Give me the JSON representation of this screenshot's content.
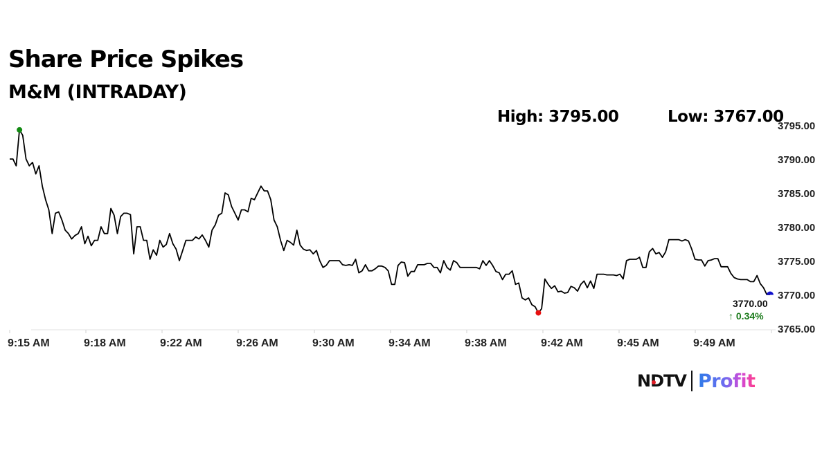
{
  "header": {
    "title": "Share Price Spikes",
    "subtitle": "M&M (INTRADAY)",
    "high_label": "High: 3795.00",
    "low_label": "Low: 3767.00"
  },
  "last_price": "3770.00",
  "change": "↑ 0.34%",
  "logo": {
    "brand": "NDTV",
    "product": "Profit"
  },
  "colors": {
    "line": "#000000",
    "high_marker": "#128a12",
    "low_marker": "#e81010",
    "last_marker": "#1010cc",
    "change_positive": "#1a7a1a"
  },
  "chart_data": {
    "type": "line",
    "title": "Share Price Spikes",
    "subtitle": "M&M (INTRADAY)",
    "xlabel": "",
    "ylabel": "",
    "x_tick_labels": [
      "9:15 AM",
      "9:18 AM",
      "9:22 AM",
      "9:26 AM",
      "9:30 AM",
      "9:34 AM",
      "9:38 AM",
      "9:42 AM",
      "9:45 AM",
      "9:49 AM"
    ],
    "y_tick_labels": [
      "3795.00",
      "3790.00",
      "3785.00",
      "3780.00",
      "3775.00",
      "3770.00",
      "3765.00"
    ],
    "ylim": [
      3765,
      3795
    ],
    "y_axis_position": "right",
    "grid": false,
    "high": 3795.0,
    "low": 3767.0,
    "last": 3770.0,
    "change_pct": 0.34,
    "series": [
      {
        "name": "M&M",
        "values": [
          3790,
          3790,
          3789,
          3794.3,
          3793.5,
          3790,
          3789,
          3789.5,
          3787.8,
          3789,
          3786,
          3784,
          3782.5,
          3779,
          3782,
          3782.2,
          3781,
          3779.5,
          3779,
          3778.2,
          3778.7,
          3779,
          3780,
          3777.5,
          3778.6,
          3777.2,
          3778,
          3778,
          3780,
          3779,
          3779,
          3782.7,
          3781.7,
          3779,
          3781.5,
          3782,
          3782,
          3781.8,
          3776,
          3780,
          3780,
          3778,
          3778,
          3775.2,
          3776.6,
          3775.8,
          3778,
          3777,
          3777.4,
          3779,
          3777.5,
          3776.7,
          3775,
          3776.5,
          3778,
          3778,
          3778,
          3778.5,
          3778.2,
          3778.8,
          3778,
          3777,
          3779.5,
          3780.3,
          3781.7,
          3782,
          3785,
          3784.7,
          3783,
          3782,
          3781,
          3782.5,
          3782.5,
          3782.2,
          3784.2,
          3784,
          3785,
          3786,
          3785.3,
          3785.3,
          3784,
          3781,
          3780,
          3778,
          3776.5,
          3778,
          3777.7,
          3777.3,
          3779.5,
          3777.3,
          3776.7,
          3776.5,
          3776.6,
          3776,
          3776.5,
          3775,
          3774,
          3774.3,
          3775,
          3775,
          3775,
          3775,
          3774.4,
          3774.3,
          3774.4,
          3774.3,
          3775.2,
          3773.2,
          3773.5,
          3774.4,
          3773.5,
          3773.5,
          3773.8,
          3774.2,
          3774.2,
          3774,
          3773.5,
          3771.5,
          3771.5,
          3774.3,
          3774.8,
          3774.7,
          3772.7,
          3773.4,
          3773.4,
          3774.4,
          3774.4,
          3774.4,
          3774.6,
          3774.6,
          3774,
          3774,
          3773.2,
          3775,
          3774,
          3773.6,
          3775,
          3774.7,
          3774,
          3774,
          3774,
          3774,
          3774,
          3774,
          3773.8,
          3775,
          3774.3,
          3775,
          3774.3,
          3773.4,
          3773.2,
          3772.2,
          3773,
          3773,
          3773.5,
          3771.5,
          3771.7,
          3769.5,
          3769.2,
          3769.5,
          3768.5,
          3768.2,
          3767.3,
          3767.9,
          3772.3,
          3771.5,
          3770.9,
          3771.3,
          3770.4,
          3770.5,
          3770.2,
          3770.3,
          3771.2,
          3771,
          3770.5,
          3771.5,
          3772,
          3771,
          3772,
          3770.9,
          3773,
          3773,
          3773,
          3772.9,
          3772.9,
          3772.9,
          3772.8,
          3773,
          3772.3,
          3775,
          3775.2,
          3775.2,
          3775.2,
          3775.5,
          3774,
          3774,
          3776.3,
          3776.8,
          3776,
          3776.2,
          3775.5,
          3776.3,
          3778.1,
          3778.1,
          3778.1,
          3778.1,
          3777.9,
          3778.1,
          3777.9,
          3776.7,
          3775.2,
          3775.1,
          3775.1,
          3774.2,
          3775,
          3775.1,
          3775.3,
          3775.3,
          3774.1,
          3774.1,
          3774.1,
          3773.1,
          3772.5,
          3772.3,
          3772.2,
          3772.2,
          3772.2,
          3771.9,
          3771.9,
          3772.8,
          3771.6,
          3771,
          3770,
          3770
        ]
      }
    ]
  }
}
